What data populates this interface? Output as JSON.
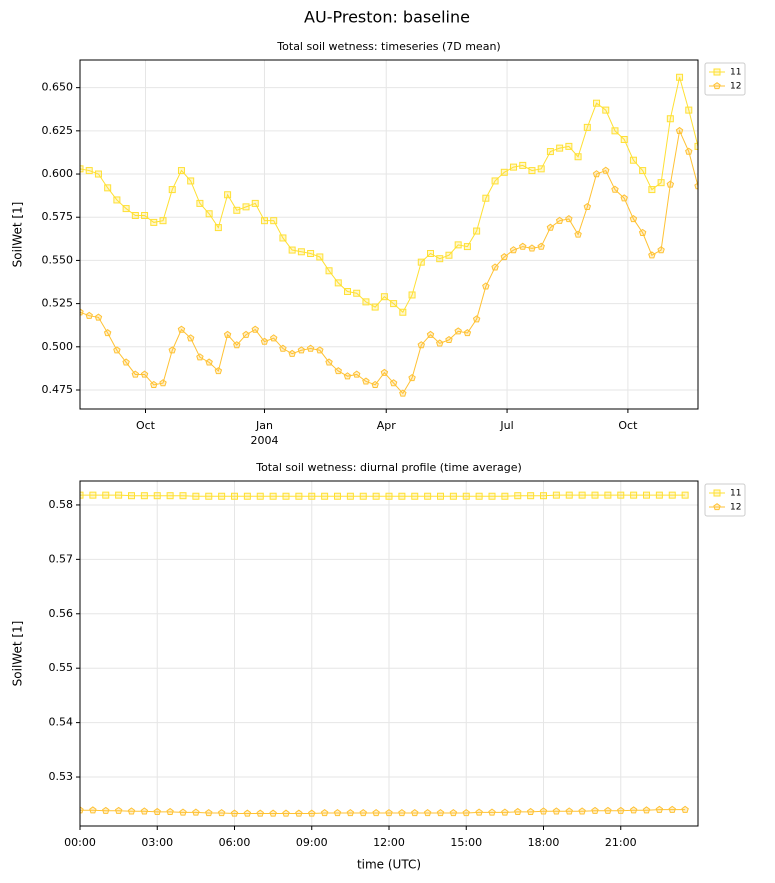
{
  "title": "AU-Preston: baseline",
  "chart_data": [
    {
      "type": "line",
      "title": "Total soil wetness: timeseries (7D mean)",
      "ylabel": "SoilWet [1]",
      "x": [
        0,
        1,
        2,
        3,
        4,
        5,
        6,
        7,
        8,
        9,
        10,
        11,
        12,
        13,
        14,
        15,
        16,
        17,
        18,
        19,
        20,
        21,
        22,
        23,
        24,
        25,
        26,
        27,
        28,
        29,
        30,
        31,
        32,
        33,
        34,
        35,
        36,
        37,
        38,
        39,
        40,
        41,
        42,
        43,
        44,
        45,
        46,
        47,
        48,
        49,
        50,
        51,
        52,
        53,
        54,
        55,
        56,
        57,
        58,
        59,
        60,
        61,
        62,
        63,
        64,
        65,
        66,
        67
      ],
      "xlim": [
        0,
        67
      ],
      "xticks": [
        {
          "value": 7.1,
          "label": "Oct"
        },
        {
          "value": 20.0,
          "label": "Jan\n2004"
        },
        {
          "value": 33.2,
          "label": "Apr"
        },
        {
          "value": 46.3,
          "label": "Jul"
        },
        {
          "value": 59.4,
          "label": "Oct"
        }
      ],
      "ylim": [
        0.464,
        0.666
      ],
      "yticks": [
        0.475,
        {
          "value": 0.5,
          "label": "0.500"
        },
        0.525,
        {
          "value": 0.55,
          "label": "0.550"
        },
        0.575,
        {
          "value": 0.6,
          "label": "0.600"
        },
        0.625,
        {
          "value": 0.65,
          "label": "0.650"
        }
      ],
      "grid": true,
      "legend": "outside right",
      "series": [
        {
          "name": "11",
          "color": "#ffe033",
          "marker": "square",
          "values": [
            0.603,
            0.602,
            0.6,
            0.592,
            0.585,
            0.58,
            0.576,
            0.576,
            0.572,
            0.573,
            0.591,
            0.602,
            0.596,
            0.583,
            0.577,
            0.569,
            0.588,
            0.579,
            0.581,
            0.583,
            0.573,
            0.573,
            0.563,
            0.556,
            0.555,
            0.554,
            0.552,
            0.544,
            0.537,
            0.532,
            0.531,
            0.526,
            0.523,
            0.529,
            0.525,
            0.52,
            0.53,
            0.549,
            0.554,
            0.551,
            0.553,
            0.559,
            0.558,
            0.567,
            0.586,
            0.596,
            0.601,
            0.604,
            0.605,
            0.602,
            0.603,
            0.613,
            0.615,
            0.616,
            0.61,
            0.627,
            0.641,
            0.637,
            0.625,
            0.62,
            0.608,
            0.602,
            0.591,
            0.595,
            0.632,
            0.656,
            0.637,
            0.616
          ]
        },
        {
          "name": "12",
          "color": "#ffc234",
          "marker": "pentagon",
          "values": [
            0.52,
            0.518,
            0.517,
            0.508,
            0.498,
            0.491,
            0.484,
            0.484,
            0.478,
            0.479,
            0.498,
            0.51,
            0.505,
            0.494,
            0.491,
            0.486,
            0.507,
            0.501,
            0.507,
            0.51,
            0.503,
            0.505,
            0.499,
            0.496,
            0.498,
            0.499,
            0.498,
            0.491,
            0.486,
            0.483,
            0.484,
            0.48,
            0.478,
            0.485,
            0.479,
            0.473,
            0.482,
            0.501,
            0.507,
            0.502,
            0.504,
            0.509,
            0.508,
            0.516,
            0.535,
            0.546,
            0.552,
            0.556,
            0.558,
            0.557,
            0.558,
            0.569,
            0.573,
            0.574,
            0.565,
            0.581,
            0.6,
            0.602,
            0.591,
            0.586,
            0.574,
            0.566,
            0.553,
            0.556,
            0.594,
            0.625,
            0.613,
            0.593
          ]
        }
      ]
    },
    {
      "type": "line",
      "title": "Total soil wetness: diurnal profile (time average)",
      "ylabel": "SoilWet [1]",
      "xlabel": "time (UTC)",
      "x": [
        0,
        0.5,
        1,
        1.5,
        2,
        2.5,
        3,
        3.5,
        4,
        4.5,
        5,
        5.5,
        6,
        6.5,
        7,
        7.5,
        8,
        8.5,
        9,
        9.5,
        10,
        10.5,
        11,
        11.5,
        12,
        12.5,
        13,
        13.5,
        14,
        14.5,
        15,
        15.5,
        16,
        16.5,
        17,
        17.5,
        18,
        18.5,
        19,
        19.5,
        20,
        20.5,
        21,
        21.5,
        22,
        22.5,
        23,
        23.5
      ],
      "xlim": [
        0,
        24
      ],
      "xticks": [
        {
          "value": 0,
          "label": "00:00"
        },
        {
          "value": 3,
          "label": "03:00"
        },
        {
          "value": 6,
          "label": "06:00"
        },
        {
          "value": 9,
          "label": "09:00"
        },
        {
          "value": 12,
          "label": "12:00"
        },
        {
          "value": 15,
          "label": "15:00"
        },
        {
          "value": 18,
          "label": "18:00"
        },
        {
          "value": 21,
          "label": "21:00"
        }
      ],
      "ylim": [
        0.521,
        0.5844
      ],
      "yticks": [
        0.53,
        0.54,
        0.55,
        0.56,
        0.57,
        0.58
      ],
      "grid": true,
      "legend": "outside right",
      "series": [
        {
          "name": "11",
          "color": "#ffe033",
          "marker": "square",
          "values": [
            0.5818,
            0.5818,
            0.5818,
            0.5818,
            0.5817,
            0.5817,
            0.5817,
            0.5817,
            0.5817,
            0.5816,
            0.5816,
            0.5816,
            0.5816,
            0.5816,
            0.5816,
            0.5816,
            0.5816,
            0.5816,
            0.5816,
            0.5816,
            0.5816,
            0.5816,
            0.5816,
            0.5816,
            0.5816,
            0.5816,
            0.5816,
            0.5816,
            0.5816,
            0.5816,
            0.5816,
            0.5816,
            0.5816,
            0.5816,
            0.5817,
            0.5817,
            0.5817,
            0.5818,
            0.5818,
            0.5818,
            0.5818,
            0.5818,
            0.5818,
            0.5818,
            0.5818,
            0.5818,
            0.5818,
            0.5818
          ]
        },
        {
          "name": "12",
          "color": "#ffc234",
          "marker": "pentagon",
          "values": [
            0.5239,
            0.5239,
            0.5238,
            0.5238,
            0.5237,
            0.5237,
            0.5236,
            0.5236,
            0.5235,
            0.5235,
            0.5234,
            0.5234,
            0.5233,
            0.5233,
            0.5233,
            0.5233,
            0.5233,
            0.5233,
            0.5233,
            0.5234,
            0.5234,
            0.5234,
            0.5234,
            0.5234,
            0.5234,
            0.5234,
            0.5234,
            0.5234,
            0.5234,
            0.5234,
            0.5234,
            0.5235,
            0.5235,
            0.5235,
            0.5236,
            0.5236,
            0.5237,
            0.5237,
            0.5237,
            0.5237,
            0.5238,
            0.5238,
            0.5238,
            0.5239,
            0.5239,
            0.524,
            0.524,
            0.524
          ]
        }
      ]
    }
  ]
}
